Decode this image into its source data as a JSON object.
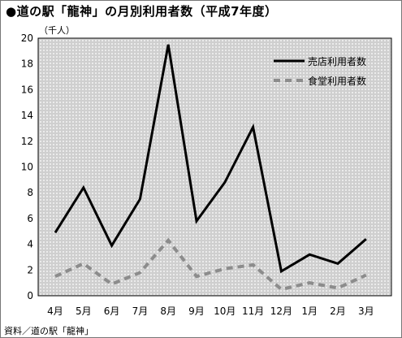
{
  "chart_data": {
    "type": "line",
    "title": "●道の駅「龍神」の月別利用者数（平成7年度）",
    "unit_label": "（千人）",
    "source": "資料／道の駅「龍神」",
    "categories": [
      "4月",
      "5月",
      "6月",
      "7月",
      "8月",
      "9月",
      "10月",
      "11月",
      "12月",
      "1月",
      "2月",
      "3月"
    ],
    "ylim": [
      0,
      20
    ],
    "yticks": [
      0,
      2,
      4,
      6,
      8,
      10,
      12,
      14,
      16,
      18,
      20
    ],
    "grid": false,
    "legend_position": "top-right",
    "series": [
      {
        "name": "売店利用者数",
        "style": "solid",
        "color": "#000000",
        "values": [
          4.9,
          8.4,
          3.9,
          7.5,
          19.5,
          5.8,
          8.8,
          13.1,
          1.9,
          3.2,
          2.5,
          4.4
        ]
      },
      {
        "name": "食堂利用者数",
        "style": "dashed",
        "color": "#8c8c8c",
        "values": [
          1.5,
          2.5,
          0.9,
          1.8,
          4.3,
          1.5,
          2.1,
          2.4,
          0.5,
          1.0,
          0.6,
          1.6
        ]
      }
    ]
  },
  "colors": {
    "plot_pattern_background": "#cfcfcf",
    "plot_pattern_dot": "#ffffff"
  }
}
